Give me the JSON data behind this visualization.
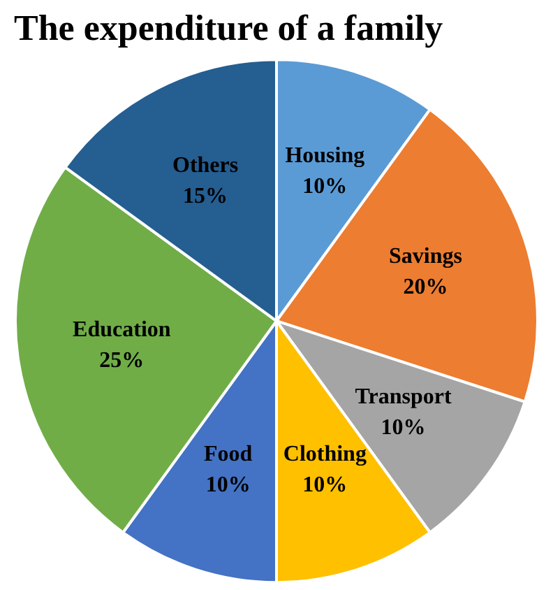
{
  "chart_data": {
    "type": "pie",
    "title": "The expenditure of a family",
    "categories": [
      "Housing",
      "Savings",
      "Transport",
      "Clothing",
      "Food",
      "Education",
      "Others"
    ],
    "values": [
      10,
      20,
      10,
      10,
      10,
      25,
      15
    ],
    "value_labels": [
      "10%",
      "20%",
      "10%",
      "10%",
      "10%",
      "25%",
      "15%"
    ],
    "colors": [
      "#5b9bd5",
      "#ed7d31",
      "#a5a5a5",
      "#ffc000",
      "#4472c4",
      "#70ad47",
      "#255e91"
    ],
    "legend": false
  }
}
